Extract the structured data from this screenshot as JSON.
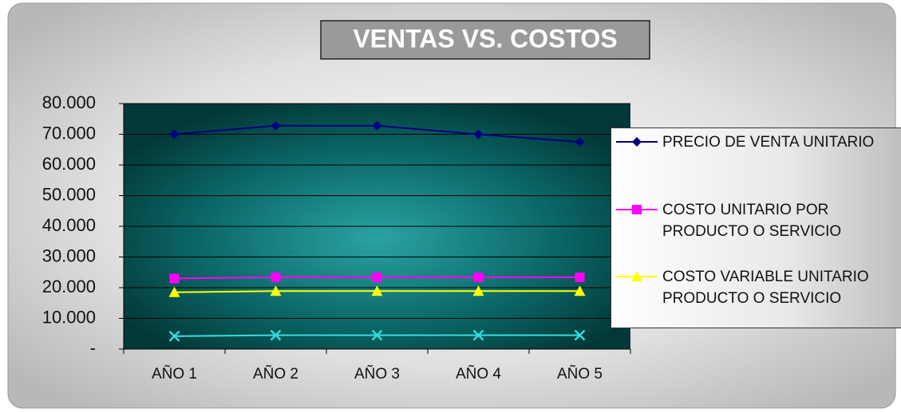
{
  "chart_data": {
    "type": "line",
    "title": "VENTAS VS. COSTOS",
    "categories": [
      "AÑO 1",
      "AÑO 2",
      "AÑO 3",
      "AÑO 4",
      "AÑO 5"
    ],
    "series": [
      {
        "name": "PRECIO DE VENTA UNITARIO",
        "color": "#000080",
        "marker": "diamond",
        "values": [
          70000,
          72800,
          72800,
          70000,
          67500
        ]
      },
      {
        "name": "COSTO UNITARIO POR PRODUCTO O SERVICIO",
        "color": "#ff00ff",
        "marker": "square",
        "values": [
          23000,
          23400,
          23400,
          23400,
          23400
        ]
      },
      {
        "name": "COSTO VARIABLE UNITARIO PRODUCTO O SERVICIO",
        "color": "#ffff00",
        "marker": "triangle",
        "values": [
          18500,
          18900,
          18900,
          18900,
          18900
        ]
      },
      {
        "color": "#33dddd",
        "marker": "x",
        "values": [
          4200,
          4500,
          4500,
          4500,
          4500
        ]
      }
    ],
    "ylim": [
      0,
      80000
    ],
    "yticks": [
      {
        "value": 0,
        "label": "-"
      },
      {
        "value": 10000,
        "label": "10.000"
      },
      {
        "value": 20000,
        "label": "20.000"
      },
      {
        "value": 30000,
        "label": "30.000"
      },
      {
        "value": 40000,
        "label": "40.000"
      },
      {
        "value": 50000,
        "label": "50.000"
      },
      {
        "value": 60000,
        "label": "60.000"
      },
      {
        "value": 70000,
        "label": "70.000"
      },
      {
        "value": 80000,
        "label": "80.000"
      }
    ],
    "grid": true
  }
}
